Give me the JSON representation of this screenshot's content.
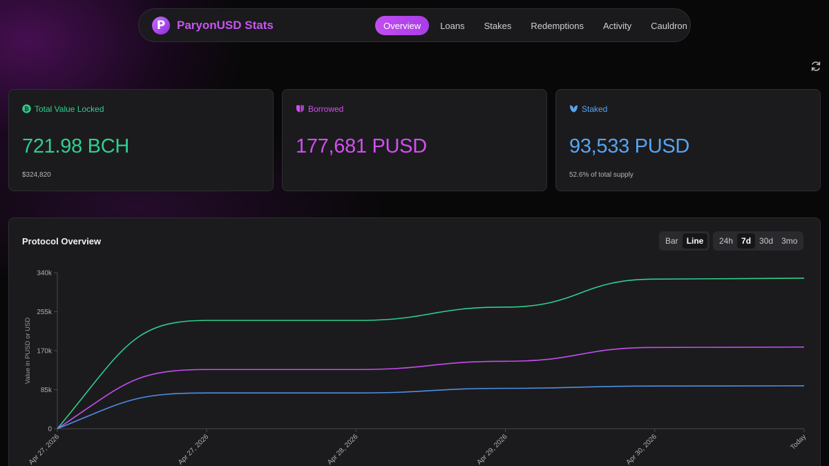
{
  "header": {
    "brand": "ParyonUSD Stats",
    "logo_letter": "P",
    "tabs": [
      {
        "label": "Overview",
        "active": true
      },
      {
        "label": "Loans",
        "active": false
      },
      {
        "label": "Stakes",
        "active": false
      },
      {
        "label": "Redemptions",
        "active": false
      },
      {
        "label": "Activity",
        "active": false
      },
      {
        "label": "Cauldron",
        "active": false
      }
    ],
    "accent": "#c14ef0"
  },
  "cards": {
    "tvl": {
      "label": "Total Value Locked",
      "value": "721.98 BCH",
      "sub": "$324,820",
      "color": "#2fcf8f",
      "icon": "bitcoin-cash-icon"
    },
    "borrowed": {
      "label": "Borrowed",
      "value": "177,681 PUSD",
      "color": "#d34ef0",
      "icon": "borrow-icon"
    },
    "staked": {
      "label": "Staked",
      "value": "93,533 PUSD",
      "sub": "52.6% of total supply",
      "color": "#58a4f2",
      "icon": "stake-icon"
    }
  },
  "chart_panel": {
    "title": "Protocol Overview",
    "chart_types": [
      {
        "label": "Bar",
        "active": false
      },
      {
        "label": "Line",
        "active": true
      }
    ],
    "ranges": [
      {
        "label": "24h",
        "active": false
      },
      {
        "label": "7d",
        "active": true
      },
      {
        "label": "30d",
        "active": false
      },
      {
        "label": "3mo",
        "active": false
      }
    ]
  },
  "chart_data": {
    "type": "line",
    "ylabel": "Value in PUSD or USD",
    "xlabel": "",
    "x": [
      "Apr 27, 2026",
      "Apr 27, 2026",
      "Apr 28, 2026",
      "Apr 29, 2026",
      "Apr 30, 2026",
      "Today"
    ],
    "yticks": [
      "0",
      "85k",
      "170k",
      "255k",
      "340k"
    ],
    "ylim": [
      0,
      340000
    ],
    "grid": false,
    "series": [
      {
        "color": "#2fcf8f",
        "values": [
          0,
          236000,
          236000,
          265000,
          326000,
          328000
        ]
      },
      {
        "color": "#c54ef0",
        "values": [
          0,
          129000,
          129000,
          147000,
          177000,
          178000
        ]
      },
      {
        "color": "#4f8fe8",
        "values": [
          0,
          78000,
          78000,
          88000,
          93000,
          93500
        ]
      }
    ]
  }
}
